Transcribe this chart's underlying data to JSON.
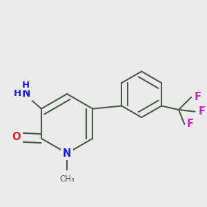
{
  "bg_color": "#ebebeb",
  "bond_color": "#4a5a4a",
  "nitrogen_color": "#1a1aee",
  "oxygen_color": "#dd2222",
  "fluorine_color": "#cc22cc",
  "bond_lw": 1.5,
  "dbo": 0.018,
  "fig_size": [
    3.0,
    3.0
  ],
  "dpi": 100,
  "xlim": [
    -0.05,
    1.0
  ],
  "ylim": [
    0.05,
    1.05
  ]
}
